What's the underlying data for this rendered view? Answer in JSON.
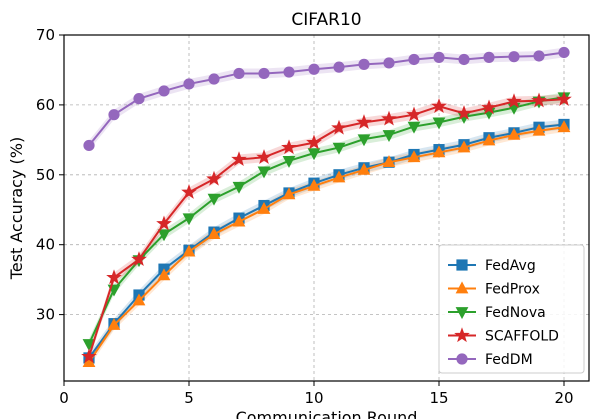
{
  "chart_data": {
    "type": "line",
    "title": "CIFAR10",
    "xlabel": "Communication Round",
    "ylabel": "Test Accuracy (%)",
    "xlim": [
      0,
      21
    ],
    "ylim": [
      20.5,
      70
    ],
    "xticks": [
      0,
      5,
      10,
      15,
      20
    ],
    "yticks": [
      30,
      40,
      50,
      60,
      70
    ],
    "grid": true,
    "grid_style": "dashed",
    "legend_position": "lower-right",
    "x": [
      1,
      2,
      3,
      4,
      5,
      6,
      7,
      8,
      9,
      10,
      11,
      12,
      13,
      14,
      15,
      16,
      17,
      18,
      19,
      20
    ],
    "series": [
      {
        "name": "FedAvg",
        "color": "#1f77b4",
        "marker": "square",
        "values": [
          23.8,
          28.7,
          32.8,
          36.5,
          39.2,
          41.8,
          43.8,
          45.6,
          47.4,
          48.8,
          50.0,
          51.0,
          51.8,
          52.9,
          53.6,
          54.3,
          55.3,
          56.0,
          56.8,
          57.2
        ]
      },
      {
        "name": "FedProx",
        "color": "#ff7f0e",
        "marker": "triangle-up",
        "values": [
          23.2,
          28.5,
          32.0,
          35.6,
          39.0,
          41.5,
          43.3,
          45.1,
          47.2,
          48.4,
          49.6,
          50.7,
          51.8,
          52.5,
          53.2,
          53.9,
          54.9,
          55.7,
          56.3,
          56.8
        ]
      },
      {
        "name": "FedNova",
        "color": "#2ca02c",
        "marker": "triangle-down",
        "values": [
          25.8,
          33.6,
          37.8,
          41.5,
          43.8,
          46.6,
          48.3,
          50.5,
          52.0,
          53.1,
          53.9,
          55.1,
          55.7,
          56.9,
          57.5,
          58.3,
          58.9,
          59.6,
          60.5,
          61.1
        ]
      },
      {
        "name": "SCAFFOLD",
        "color": "#d62728",
        "marker": "star",
        "values": [
          24.0,
          35.3,
          37.9,
          43.0,
          47.5,
          49.4,
          52.2,
          52.5,
          53.9,
          54.6,
          56.7,
          57.5,
          58.0,
          58.6,
          59.8,
          58.8,
          59.6,
          60.5,
          60.6,
          60.8
        ]
      },
      {
        "name": "FedDM",
        "color": "#9467bd",
        "marker": "circle",
        "values": [
          54.2,
          58.6,
          60.9,
          62.0,
          63.0,
          63.7,
          64.5,
          64.5,
          64.7,
          65.1,
          65.4,
          65.8,
          66.0,
          66.5,
          66.8,
          66.5,
          66.8,
          66.9,
          67.0,
          67.5
        ]
      }
    ]
  }
}
